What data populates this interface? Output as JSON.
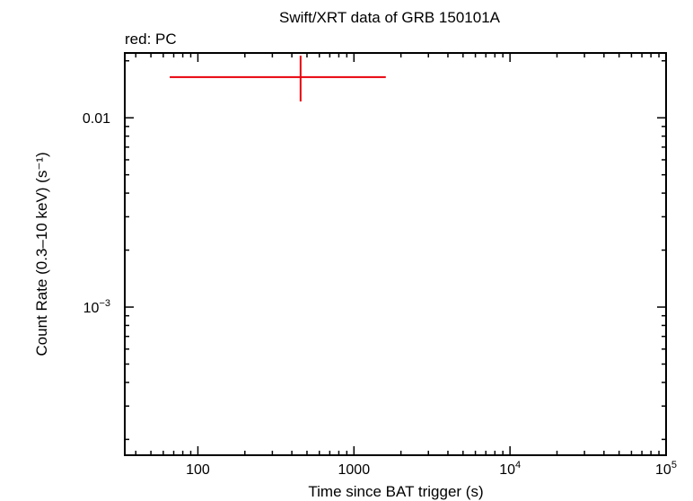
{
  "chart_data": {
    "type": "scatter",
    "title": "Swift/XRT data of GRB 150101A",
    "subtitle": "red: PC",
    "xlabel": "Time since BAT trigger (s)",
    "ylabel": "Count Rate (0.3–10 keV) (s⁻¹)",
    "xscale": "log",
    "yscale": "log",
    "xlim": [
      34,
      100000
    ],
    "ylim": [
      0.000165,
      0.022
    ],
    "grid": false,
    "x_ticks": [
      {
        "value": 100,
        "base": "100",
        "exp": ""
      },
      {
        "value": 1000,
        "base": "1000",
        "exp": ""
      },
      {
        "value": 10000,
        "base": "10",
        "exp": "4"
      },
      {
        "value": 100000,
        "base": "10",
        "exp": "5"
      }
    ],
    "y_ticks": [
      {
        "value": 0.01,
        "base": "0.01",
        "exp": ""
      },
      {
        "value": 0.001,
        "base": "10",
        "exp": "−3"
      }
    ],
    "series": [
      {
        "color": "#e8000b",
        "points": [
          {
            "x": 455,
            "xlo": 66,
            "xhi": 1600,
            "y": 0.0164,
            "ylo": 0.0122,
            "yhi": 0.0213
          }
        ]
      }
    ]
  }
}
